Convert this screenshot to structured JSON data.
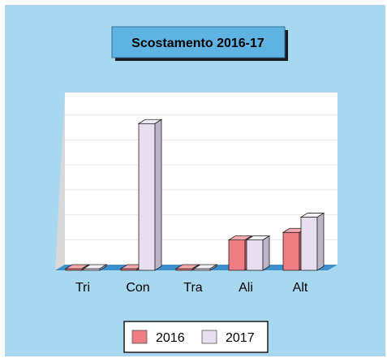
{
  "chart_data": {
    "type": "bar",
    "title": "Scostamento 2016-17",
    "categories": [
      "Tri",
      "Con",
      "Tra",
      "Ali",
      "Alt"
    ],
    "series": [
      {
        "name": "2016",
        "values": [
          0.2,
          0.2,
          0.2,
          12,
          15
        ]
      },
      {
        "name": "2017",
        "values": [
          0.2,
          58,
          0.2,
          12,
          21
        ]
      }
    ],
    "ylim": [
      0,
      60
    ],
    "grid": true,
    "legend": "bottom",
    "colors": {
      "series_2016": "#f07c84",
      "series_2017": "#e7dff0",
      "background": "#a8d8f0",
      "plot_area": "#ffffff",
      "title_box": "#5fb3e3",
      "floor": "#3d8fcc"
    }
  }
}
